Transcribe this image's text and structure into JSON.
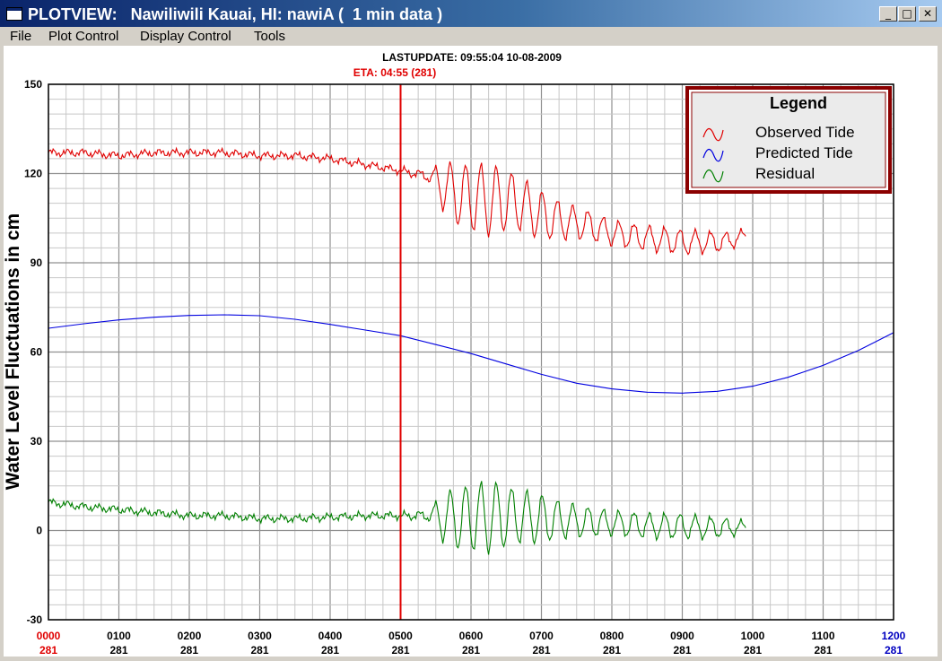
{
  "window": {
    "title": "PLOTVIEW:   Nawiliwili Kauai, HI: nawiA (  1 min data )",
    "minimize_glyph": "_",
    "maximize_glyph": "□",
    "close_glyph": "✕",
    "icon": "window-icon"
  },
  "menu": [
    "File",
    "Plot Control",
    "Display Control",
    "Tools"
  ],
  "header": {
    "last_update": "LASTUPDATE: 09:55:04  10-08-2009",
    "eta": "ETA: 04:55 (281)"
  },
  "legend": {
    "title": "Legend",
    "items": [
      {
        "label": "Observed Tide",
        "color": "#e00000"
      },
      {
        "label": "Predicted Tide",
        "color": "#0000e0"
      },
      {
        "label": "Residual",
        "color": "#008000"
      }
    ]
  },
  "colors": {
    "observed": "#e00000",
    "predicted": "#0000e0",
    "residual": "#008000",
    "eta_line": "#e00000",
    "legend_border": "#8b0000",
    "grid": "#a8a8a8"
  },
  "chart_data": {
    "type": "line",
    "ylabel": "Water Level Fluctuations in cm",
    "ylim": [
      -30,
      150
    ],
    "yticks": [
      -30,
      0,
      30,
      60,
      90,
      120,
      150
    ],
    "xlim": [
      0,
      12
    ],
    "xticks": [
      {
        "hour": 0,
        "time": "0000",
        "day": "281",
        "color": "#e00000"
      },
      {
        "hour": 1,
        "time": "0100",
        "day": "281",
        "color": "#000000"
      },
      {
        "hour": 2,
        "time": "0200",
        "day": "281",
        "color": "#000000"
      },
      {
        "hour": 3,
        "time": "0300",
        "day": "281",
        "color": "#000000"
      },
      {
        "hour": 4,
        "time": "0400",
        "day": "281",
        "color": "#000000"
      },
      {
        "hour": 5,
        "time": "0500",
        "day": "281",
        "color": "#000000"
      },
      {
        "hour": 6,
        "time": "0600",
        "day": "281",
        "color": "#000000"
      },
      {
        "hour": 7,
        "time": "0700",
        "day": "281",
        "color": "#000000"
      },
      {
        "hour": 8,
        "time": "0800",
        "day": "281",
        "color": "#000000"
      },
      {
        "hour": 9,
        "time": "0900",
        "day": "281",
        "color": "#000000"
      },
      {
        "hour": 10,
        "time": "1000",
        "day": "281",
        "color": "#000000"
      },
      {
        "hour": 11,
        "time": "1100",
        "day": "281",
        "color": "#000000"
      },
      {
        "hour": 12,
        "time": "1200",
        "day": "281",
        "color": "#0000c0"
      }
    ],
    "eta_hour": 5.0,
    "grid": true,
    "legend_position": "top-right",
    "series": [
      {
        "name": "Observed Tide",
        "color": "#e00000",
        "x": [
          0,
          0.5,
          1,
          1.5,
          2,
          2.5,
          3,
          3.5,
          4,
          4.5,
          5,
          5.4,
          5.6,
          5.8,
          6,
          6.3,
          6.6,
          7,
          7.3,
          7.6,
          8,
          8.3,
          8.6,
          9,
          9.3,
          9.6,
          9.9
        ],
        "y": [
          127,
          127,
          126,
          127,
          127,
          127,
          126,
          126,
          125,
          123,
          121,
          119,
          116,
          113,
          112,
          111,
          111,
          106,
          104,
          103,
          100,
          99,
          98,
          97,
          97,
          97,
          99
        ]
      },
      {
        "name": "Predicted Tide",
        "color": "#0000e0",
        "x": [
          0,
          0.5,
          1,
          1.5,
          2,
          2.5,
          3,
          3.5,
          4,
          4.5,
          5,
          5.5,
          6,
          6.5,
          7,
          7.5,
          8,
          8.5,
          9,
          9.5,
          10,
          10.5,
          11,
          11.5,
          12
        ],
        "y": [
          68,
          69.5,
          70.8,
          71.7,
          72.3,
          72.5,
          72.2,
          71,
          69.3,
          67.4,
          65.5,
          62.5,
          59.5,
          56,
          52.5,
          49.5,
          47.6,
          46.5,
          46.2,
          46.8,
          48.5,
          51.5,
          55.5,
          60.5,
          66.5
        ]
      },
      {
        "name": "Residual",
        "color": "#008000",
        "x": [
          0,
          0.5,
          1,
          1.5,
          2,
          2.5,
          3,
          3.5,
          4,
          4.5,
          5,
          5.4,
          5.6,
          5.8,
          6,
          6.3,
          6.6,
          7,
          7.3,
          7.6,
          8,
          8.3,
          8.6,
          9,
          9.3,
          9.6,
          9.9
        ],
        "y": [
          9.5,
          8,
          7,
          6,
          5,
          5,
          4,
          4,
          4.5,
          5,
          5,
          5,
          4.5,
          4,
          4.5,
          4.5,
          5,
          4,
          3.5,
          3,
          2.5,
          2,
          1.5,
          1.5,
          1,
          1,
          1
        ],
        "oscillation_amplitude_cm": [
          0.8,
          0.8,
          0.8,
          0.8,
          0.8,
          0.8,
          0.8,
          0.8,
          0.8,
          0.8,
          0.8,
          1.5,
          8,
          10,
          11,
          12,
          9,
          8,
          6,
          5,
          4,
          4,
          4,
          4,
          3.5,
          3,
          2
        ]
      }
    ]
  }
}
